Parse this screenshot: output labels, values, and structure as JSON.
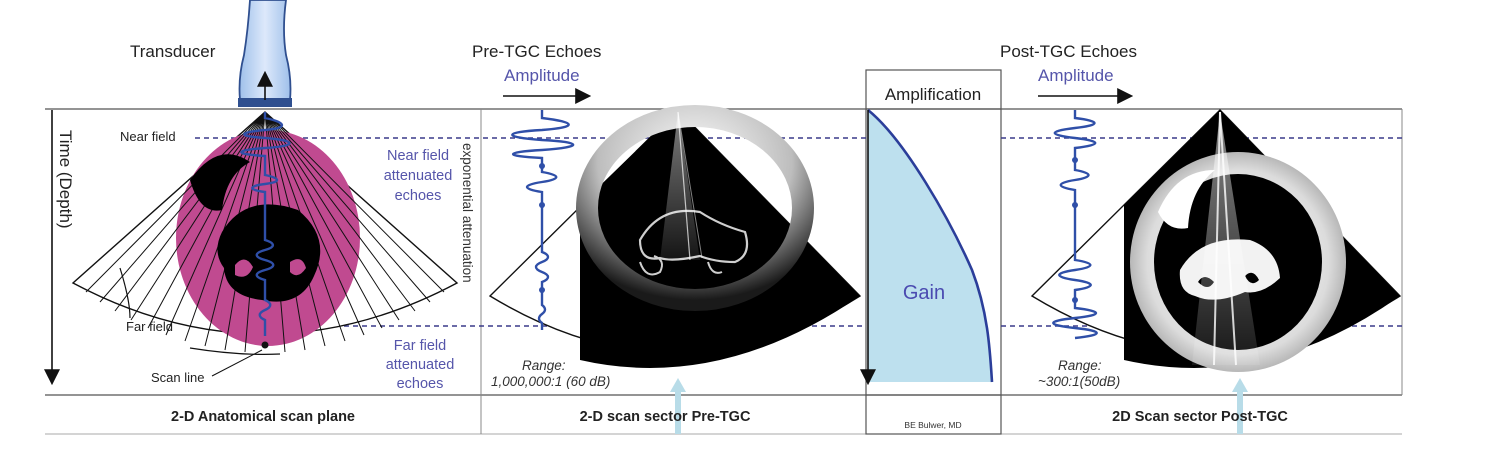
{
  "panels": {
    "anatomical": {
      "transducer_label": "Transducer",
      "axis_label": "Time (Depth)",
      "near_field": "Near field",
      "far_field": "Far field",
      "scan_line": "Scan line",
      "near_echoes": [
        "Near field",
        "attenuated",
        "echoes"
      ],
      "far_echoes": [
        "Far field",
        "attenuated",
        "echoes"
      ],
      "caption": "2-D Anatomical scan plane"
    },
    "pre_tgc": {
      "title": "Pre-TGC Echoes",
      "amplitude": "Amplitude",
      "side_label": "exponential attenuation",
      "range_label": "Range:",
      "range_value": "1,000,000:1 (60 dB)",
      "caption": "2-D scan sector Pre-TGC"
    },
    "amplification": {
      "title": "Amplification",
      "gain": "Gain",
      "credit": "BE Bulwer, MD"
    },
    "post_tgc": {
      "title": "Post-TGC Echoes",
      "amplitude": "Amplitude",
      "range_label": "Range:",
      "range_value": "~300:1(50dB)",
      "caption": "2D Scan sector Post-TGC"
    }
  },
  "colors": {
    "label_blue": "#5555aa",
    "wave_blue": "#2f4fa8",
    "gain_fill": "#bde0ee",
    "gain_curve": "#2b3e9a",
    "tissue_pink": "#c04a90",
    "arrow_light": "#b8dce8",
    "dash": "#3a3a8a"
  }
}
